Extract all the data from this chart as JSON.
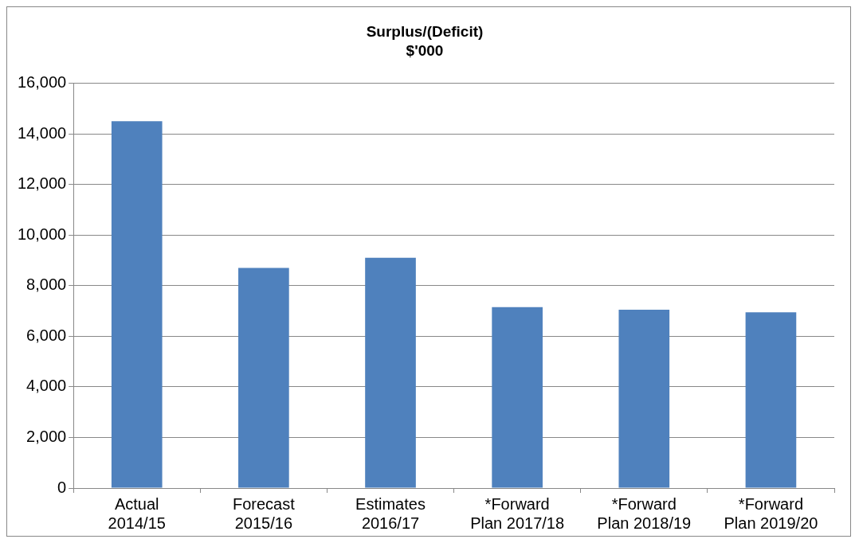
{
  "chart_data": {
    "type": "bar",
    "title": "Surplus/(Deficit)",
    "subtitle": "$'000",
    "categories": [
      "Actual 2014/15",
      "Forecast 2015/16",
      "Estimates 2016/17",
      "*Forward Plan 2017/18",
      "*Forward Plan 2018/19",
      "*Forward Plan 2019/20"
    ],
    "values": [
      14500,
      8700,
      9100,
      7150,
      7050,
      6950
    ],
    "color": "#4f81bd",
    "ylim": [
      0,
      16000
    ],
    "yticks": [
      0,
      {
        "value": 2000,
        "label": "2,000"
      },
      {
        "value": 4000,
        "label": "4,000"
      },
      {
        "value": 6000,
        "label": "6,000"
      },
      {
        "value": 8000,
        "label": "8,000"
      },
      {
        "value": 10000,
        "label": "10,000"
      },
      {
        "value": 12000,
        "label": "12,000"
      },
      {
        "value": 14000,
        "label": "14,000"
      },
      {
        "value": 16000,
        "label": "16,000"
      }
    ],
    "grid": "y",
    "legend": false
  }
}
